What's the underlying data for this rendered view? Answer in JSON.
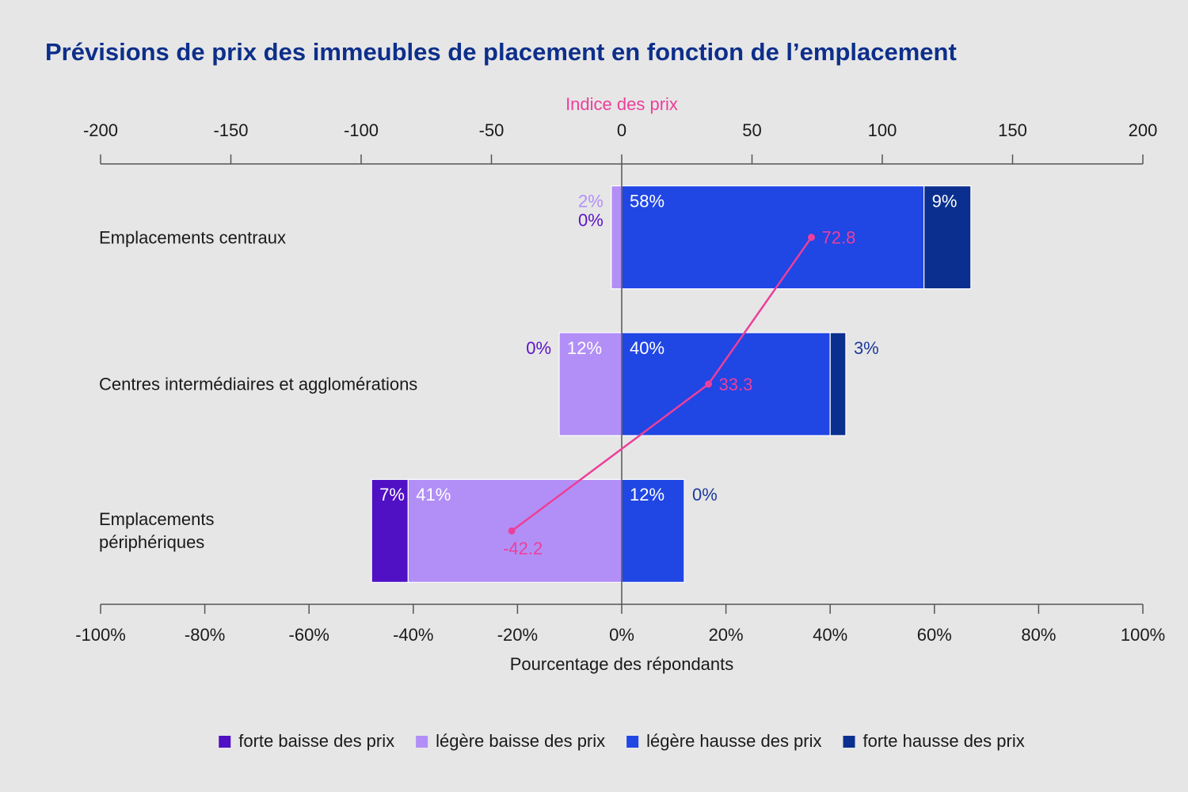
{
  "chart_data": {
    "type": "bar",
    "orientation": "horizontal",
    "stacked": true,
    "title": "Prévisions de prix des immeubles de placement en fonction de l’emplacement",
    "categories": [
      "Emplacements centraux",
      "Centres intermédiaires et agglomérations",
      "Emplacements\npériphériques"
    ],
    "series": [
      {
        "name": "forte baisse des prix",
        "color": "#5010c4",
        "label_color": "#5a14c8",
        "direction": "left",
        "values": [
          0,
          0,
          7
        ],
        "value_labels": [
          "0%",
          "0%",
          "7%"
        ]
      },
      {
        "name": "légère baisse des prix",
        "color": "#b28ff6",
        "label_color": "#b28ff6",
        "direction": "left",
        "values": [
          2,
          12,
          41
        ],
        "value_labels": [
          "2%",
          "12%",
          "41%"
        ]
      },
      {
        "name": "légère hausse des prix",
        "color": "#2046e4",
        "label_color": "#2046e4",
        "direction": "right",
        "values": [
          58,
          40,
          12
        ],
        "value_labels": [
          "58%",
          "40%",
          "12%"
        ]
      },
      {
        "name": "forte hausse des prix",
        "color": "#0a2f8f",
        "label_color": "#1c3a9c",
        "direction": "right",
        "values": [
          9,
          3,
          0
        ],
        "value_labels": [
          "9%",
          "3%",
          "0%"
        ]
      }
    ],
    "line": {
      "color": "#ec3f9b",
      "axis": "x2",
      "values": [
        72.8,
        33.3,
        -42.2
      ]
    },
    "xlabel": "Pourcentage des répondants",
    "xlim": [
      -100,
      100
    ],
    "xticks": [
      {
        "value": -100,
        "label": "-100%"
      },
      {
        "value": -80,
        "label": "-80%"
      },
      {
        "value": -60,
        "label": "-60%"
      },
      {
        "value": -40,
        "label": "-40%"
      },
      {
        "value": -20,
        "label": "-20%"
      },
      {
        "value": 0,
        "label": "0%"
      },
      {
        "value": 20,
        "label": "20%"
      },
      {
        "value": 40,
        "label": "40%"
      },
      {
        "value": 60,
        "label": "60%"
      },
      {
        "value": 80,
        "label": "80%"
      },
      {
        "value": 100,
        "label": "100%"
      }
    ],
    "x2label": "Indice des prix",
    "x2lim": [
      -200,
      200
    ],
    "x2ticks": [
      -200,
      -150,
      -100,
      -50,
      0,
      50,
      100,
      150,
      200
    ],
    "legend": "bottom"
  }
}
